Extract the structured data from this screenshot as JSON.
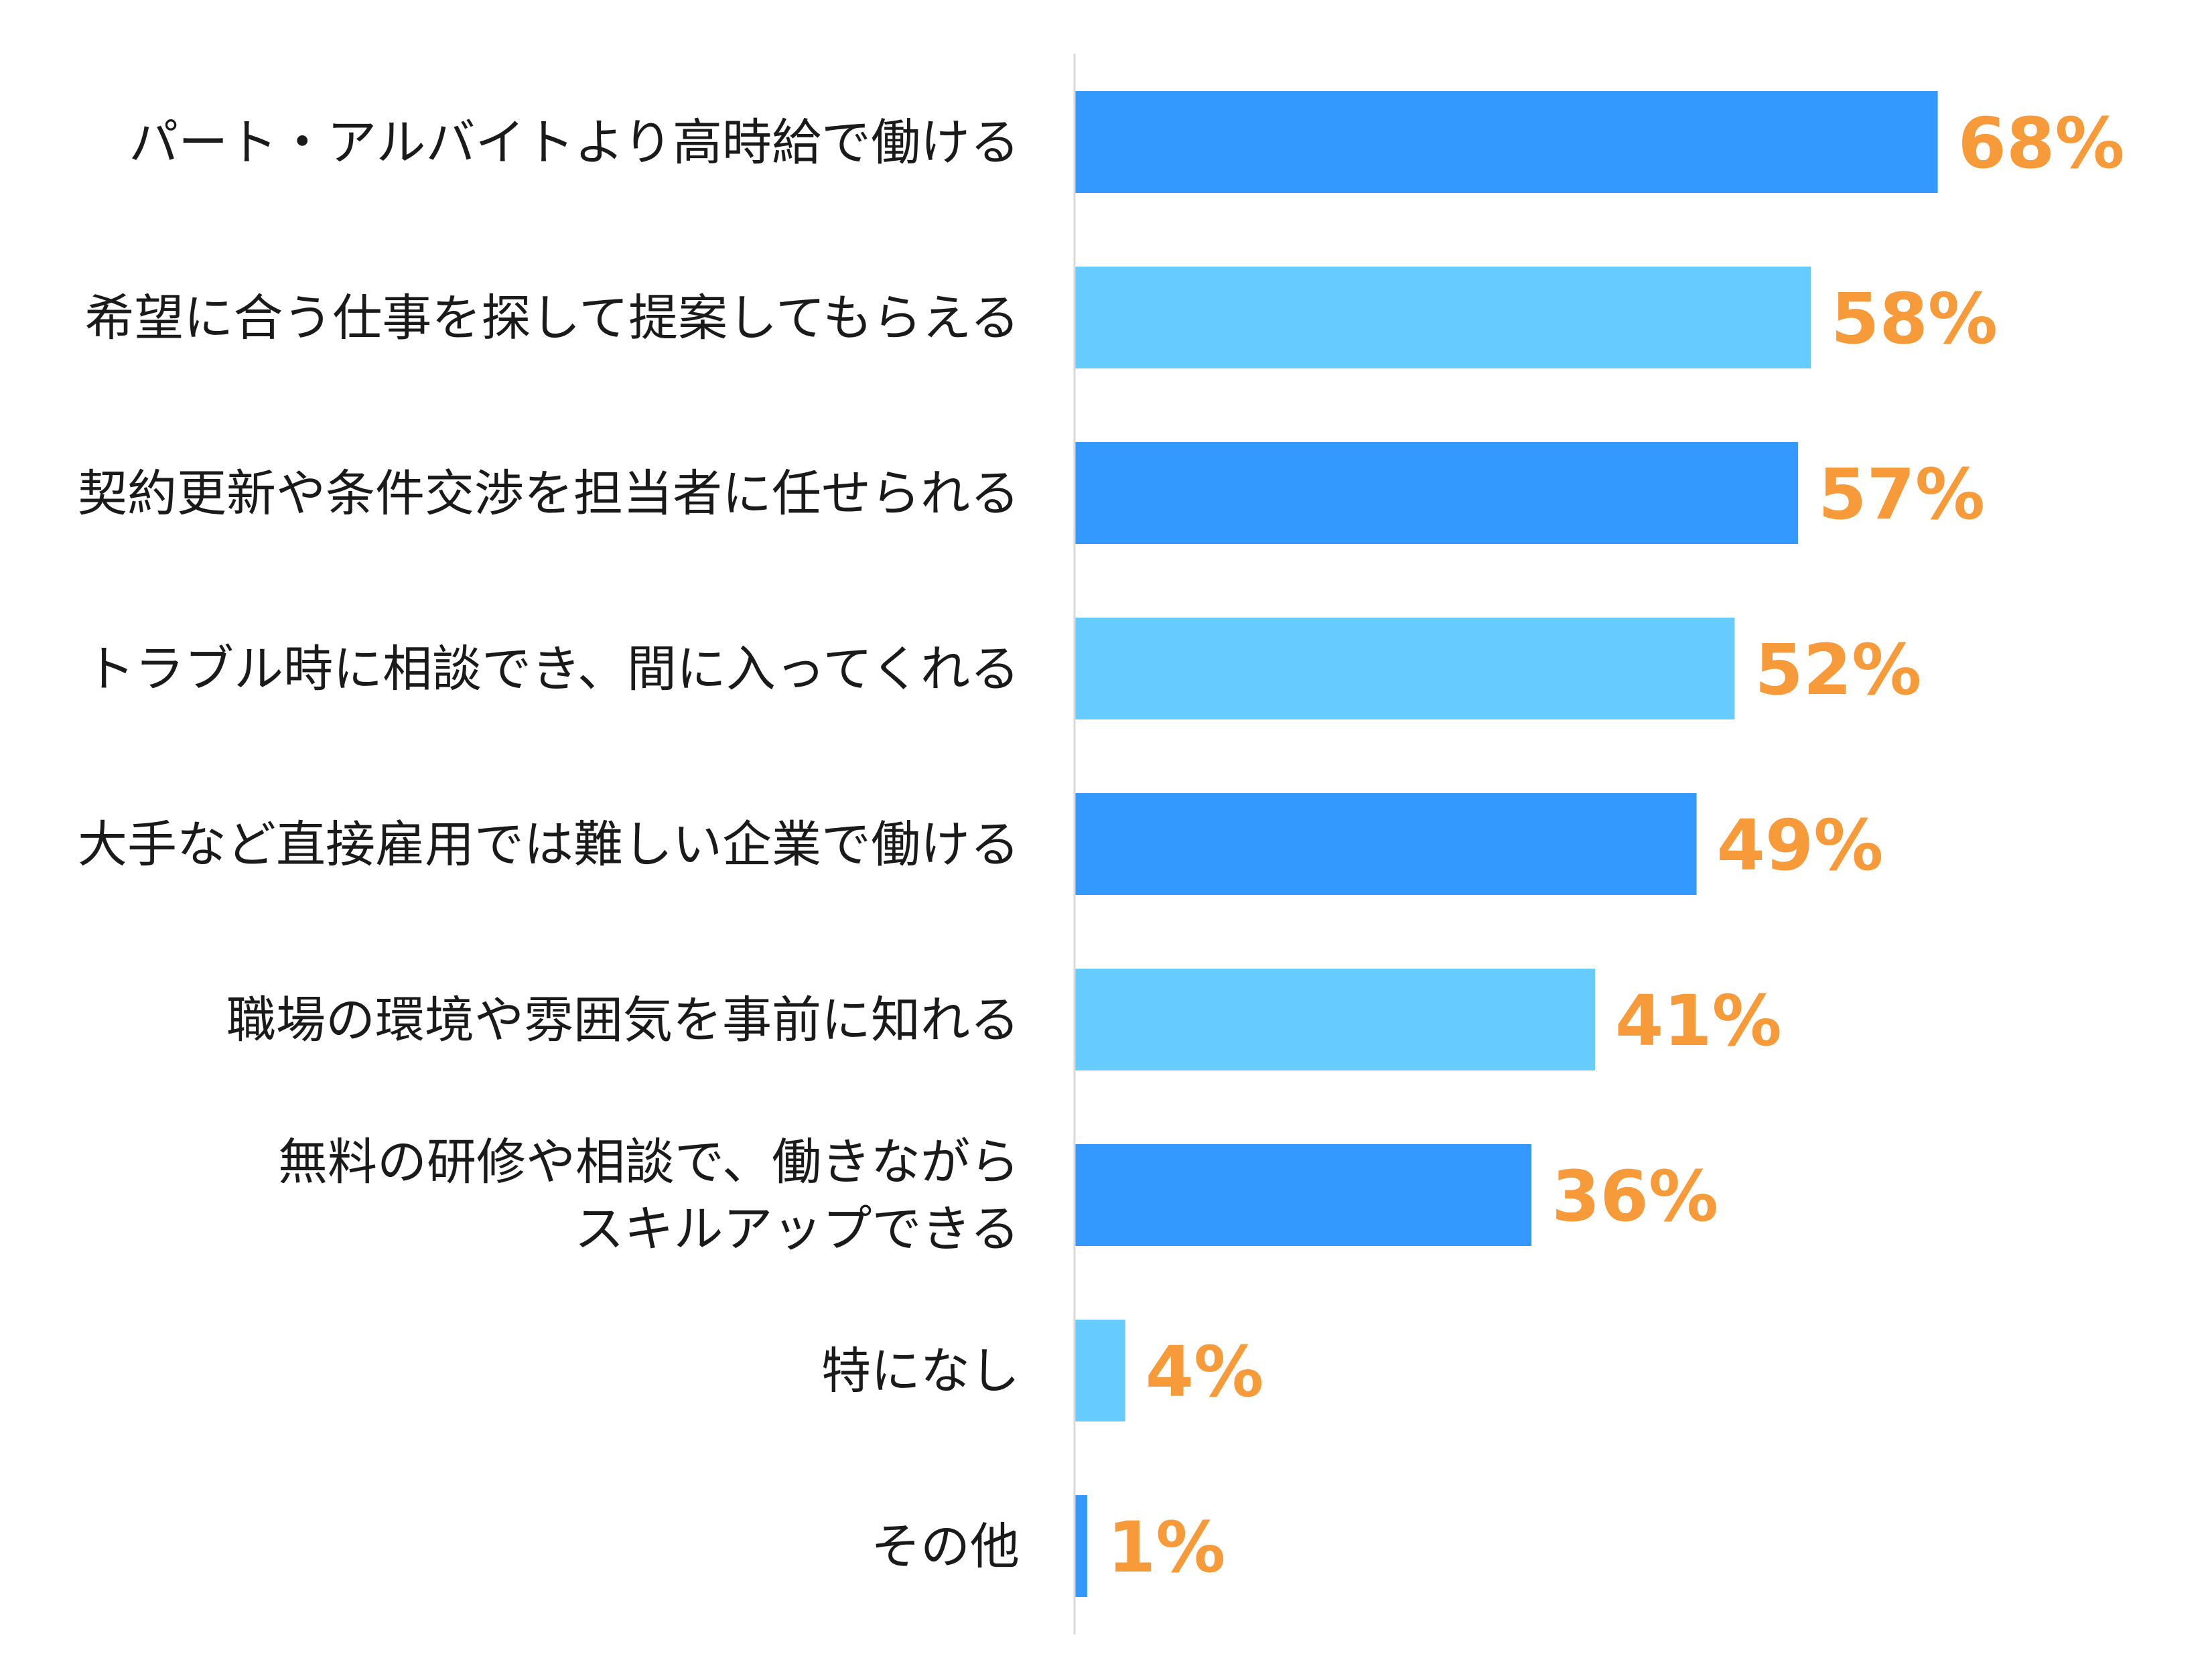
{
  "chart_data": {
    "type": "bar",
    "orientation": "horizontal",
    "title": "",
    "xlabel": "",
    "ylabel": "",
    "xlim": [
      0,
      100
    ],
    "grid": false,
    "legend": "none",
    "categories": [
      [
        "パート・アルバイトより高時給で働ける"
      ],
      [
        "希望に合う仕事を探して提案してもらえる"
      ],
      [
        "契約更新や条件交渉を担当者に任せられる"
      ],
      [
        "トラブル時に相談でき、間に入ってくれる"
      ],
      [
        "大手など直接雇用では難しい企業で働ける"
      ],
      [
        "職場の環境や雰囲気を事前に知れる"
      ],
      [
        "無料の研修や相談で、働きながら",
        "スキルアップできる"
      ],
      [
        "特になし"
      ],
      [
        "その他"
      ]
    ],
    "values": [
      68,
      58,
      57,
      52,
      49,
      41,
      36,
      4,
      1
    ],
    "value_labels": [
      "68%",
      "58%",
      "57%",
      "52%",
      "49%",
      "41%",
      "36%",
      "4%",
      "1%"
    ],
    "bar_colors": [
      "#3399ff",
      "#66ccff"
    ],
    "value_label_color": "#f79a3a",
    "axis_color": "#d9d9d9"
  }
}
